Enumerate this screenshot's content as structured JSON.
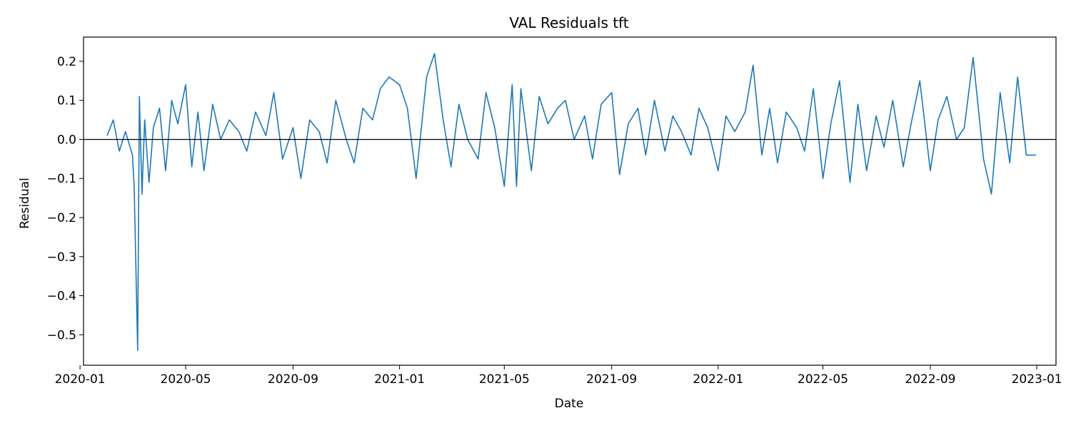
{
  "chart_data": {
    "type": "line",
    "title": "VAL Residuals tft",
    "xlabel": "Date",
    "ylabel": "Residual",
    "xlim": [
      "2020-01-05",
      "2023-01-23"
    ],
    "ylim": [
      -0.578,
      0.262
    ],
    "grid": false,
    "legend": "none",
    "reference_line": {
      "y": 0.0,
      "color": "#000000"
    },
    "x_ticks": [
      "2020-01",
      "2020-05",
      "2020-09",
      "2021-01",
      "2021-05",
      "2021-09",
      "2022-01",
      "2022-05",
      "2022-09",
      "2023-01"
    ],
    "y_ticks": [
      {
        "value": 0.2,
        "label": "0.2"
      },
      {
        "value": 0.1,
        "label": "0.1"
      },
      {
        "value": 0.0,
        "label": "0.0"
      },
      {
        "value": -0.1,
        "label": "−0.1"
      },
      {
        "value": -0.2,
        "label": "−0.2"
      },
      {
        "value": -0.3,
        "label": "−0.3"
      },
      {
        "value": -0.4,
        "label": "−0.4"
      },
      {
        "value": -0.5,
        "label": "−0.5"
      }
    ],
    "series": [
      {
        "color": "#1f77b4",
        "x": [
          "2020-02-01",
          "2020-02-08",
          "2020-02-15",
          "2020-02-22",
          "2020-03-01",
          "2020-03-03",
          "2020-03-07",
          "2020-03-09",
          "2020-03-12",
          "2020-03-15",
          "2020-03-20",
          "2020-03-25",
          "2020-04-01",
          "2020-04-08",
          "2020-04-15",
          "2020-04-22",
          "2020-05-01",
          "2020-05-08",
          "2020-05-15",
          "2020-05-22",
          "2020-06-01",
          "2020-06-10",
          "2020-06-20",
          "2020-07-01",
          "2020-07-10",
          "2020-07-20",
          "2020-08-01",
          "2020-08-10",
          "2020-08-20",
          "2020-09-01",
          "2020-09-10",
          "2020-09-20",
          "2020-10-01",
          "2020-10-10",
          "2020-10-20",
          "2020-11-01",
          "2020-11-10",
          "2020-11-20",
          "2020-12-01",
          "2020-12-10",
          "2020-12-20",
          "2021-01-01",
          "2021-01-10",
          "2021-01-20",
          "2021-02-01",
          "2021-02-10",
          "2021-02-20",
          "2021-03-01",
          "2021-03-10",
          "2021-03-20",
          "2021-04-01",
          "2021-04-10",
          "2021-04-20",
          "2021-05-01",
          "2021-05-10",
          "2021-05-15",
          "2021-05-20",
          "2021-06-01",
          "2021-06-10",
          "2021-06-20",
          "2021-07-01",
          "2021-07-10",
          "2021-07-20",
          "2021-08-01",
          "2021-08-10",
          "2021-08-20",
          "2021-09-01",
          "2021-09-10",
          "2021-09-20",
          "2021-10-01",
          "2021-10-10",
          "2021-10-20",
          "2021-11-01",
          "2021-11-10",
          "2021-11-20",
          "2021-12-01",
          "2021-12-10",
          "2021-12-20",
          "2022-01-01",
          "2022-01-10",
          "2022-01-20",
          "2022-02-01",
          "2022-02-10",
          "2022-02-20",
          "2022-03-01",
          "2022-03-10",
          "2022-03-20",
          "2022-04-01",
          "2022-04-10",
          "2022-04-20",
          "2022-05-01",
          "2022-05-10",
          "2022-05-20",
          "2022-06-01",
          "2022-06-10",
          "2022-06-20",
          "2022-07-01",
          "2022-07-10",
          "2022-07-20",
          "2022-08-01",
          "2022-08-10",
          "2022-08-20",
          "2022-09-01",
          "2022-09-10",
          "2022-09-20",
          "2022-10-01",
          "2022-10-10",
          "2022-10-20",
          "2022-11-01",
          "2022-11-10",
          "2022-11-20",
          "2022-12-01",
          "2022-12-10",
          "2022-12-20",
          "2022-12-31"
        ],
        "y": [
          0.01,
          0.05,
          -0.03,
          0.02,
          -0.04,
          -0.12,
          -0.54,
          0.11,
          -0.14,
          0.05,
          -0.11,
          0.03,
          0.08,
          -0.08,
          0.1,
          0.04,
          0.14,
          -0.07,
          0.07,
          -0.08,
          0.09,
          0.0,
          0.05,
          0.02,
          -0.03,
          0.07,
          0.01,
          0.12,
          -0.05,
          0.03,
          -0.1,
          0.05,
          0.02,
          -0.06,
          0.1,
          0.0,
          -0.06,
          0.08,
          0.05,
          0.13,
          0.16,
          0.14,
          0.08,
          -0.1,
          0.16,
          0.22,
          0.05,
          -0.07,
          0.09,
          0.0,
          -0.05,
          0.12,
          0.03,
          -0.12,
          0.14,
          -0.12,
          0.13,
          -0.08,
          0.11,
          0.04,
          0.08,
          0.1,
          0.0,
          0.06,
          -0.05,
          0.09,
          0.12,
          -0.09,
          0.04,
          0.08,
          -0.04,
          0.1,
          -0.03,
          0.06,
          0.02,
          -0.04,
          0.08,
          0.03,
          -0.08,
          0.06,
          0.02,
          0.07,
          0.19,
          -0.04,
          0.08,
          -0.06,
          0.07,
          0.03,
          -0.03,
          0.13,
          -0.1,
          0.04,
          0.15,
          -0.11,
          0.09,
          -0.08,
          0.06,
          -0.02,
          0.1,
          -0.07,
          0.04,
          0.15,
          -0.08,
          0.05,
          0.11,
          0.0,
          0.03,
          0.21,
          -0.05,
          -0.14,
          0.12,
          -0.06,
          0.16,
          -0.04,
          -0.04
        ]
      }
    ]
  }
}
